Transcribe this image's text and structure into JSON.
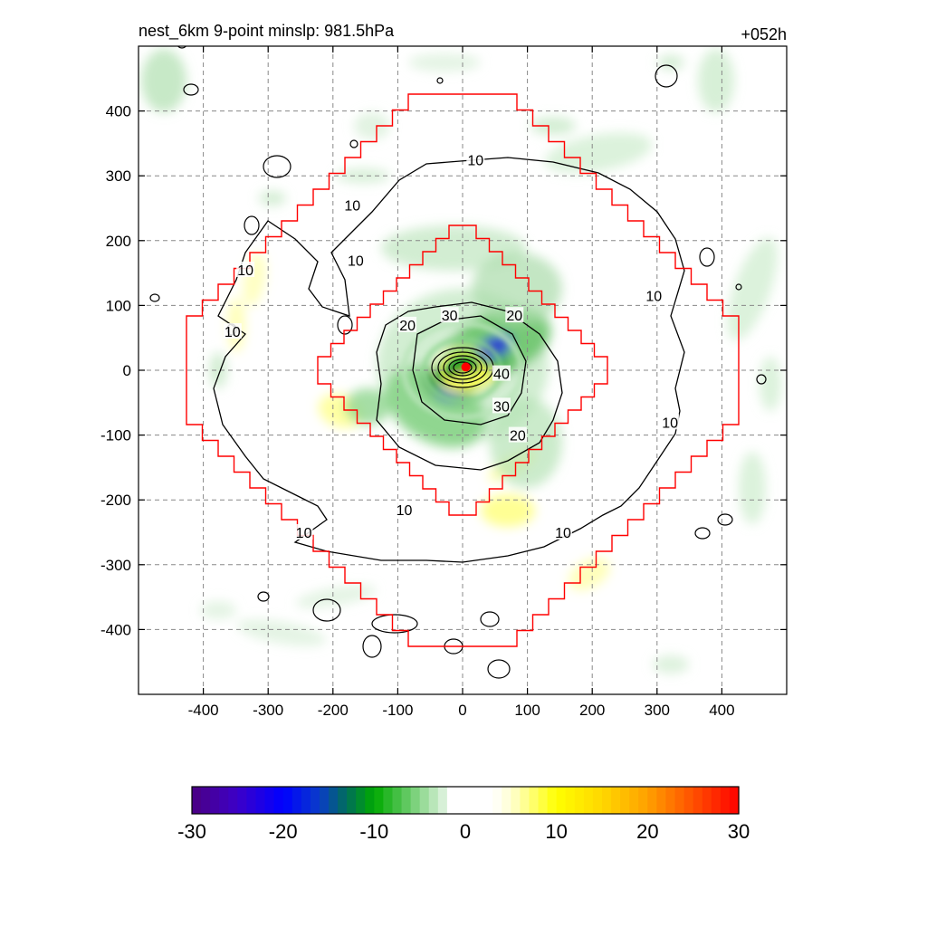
{
  "chart_data": {
    "type": "heatmap",
    "title": "nest_6km  9-point minslp: 981.5hPa",
    "subtitle": "+052h",
    "xlabel": "",
    "ylabel": "",
    "xlim": [
      -500,
      500
    ],
    "ylim": [
      -500,
      500
    ],
    "x_ticks": [
      -400,
      -300,
      -200,
      -100,
      0,
      100,
      200,
      300,
      400
    ],
    "y_ticks": [
      400,
      300,
      200,
      100,
      0,
      -100,
      -200,
      -300,
      -400
    ],
    "grid": true,
    "colorbar": {
      "range": [
        -30,
        30
      ],
      "ticks": [
        -30,
        -20,
        -10,
        0,
        10,
        20,
        30
      ],
      "placement": "bottom"
    },
    "contour_labels": [
      {
        "text": "10",
        "x": 20,
        "y": 325
      },
      {
        "text": "10",
        "x": -170,
        "y": 255
      },
      {
        "text": "10",
        "x": -165,
        "y": 170
      },
      {
        "text": "10",
        "x": -335,
        "y": 155
      },
      {
        "text": "10",
        "x": 295,
        "y": 115
      },
      {
        "text": "10",
        "x": -355,
        "y": 60
      },
      {
        "text": "10",
        "x": 320,
        "y": -80
      },
      {
        "text": "10",
        "x": -90,
        "y": -215
      },
      {
        "text": "10",
        "x": 155,
        "y": -250
      },
      {
        "text": "10",
        "x": -245,
        "y": -250
      },
      {
        "text": "20",
        "x": 80,
        "y": 85
      },
      {
        "text": "20",
        "x": -85,
        "y": 70
      },
      {
        "text": "20",
        "x": 85,
        "y": -100
      },
      {
        "text": "30",
        "x": -20,
        "y": 85
      },
      {
        "text": "30",
        "x": 60,
        "y": -55
      },
      {
        "text": "40",
        "x": 60,
        "y": -5
      }
    ],
    "storm_center": {
      "x": 5,
      "y": 5
    },
    "colors": {
      "domain_boundary": "#ff0000",
      "contour": "#000000",
      "center_marker": "#ff0000"
    }
  }
}
